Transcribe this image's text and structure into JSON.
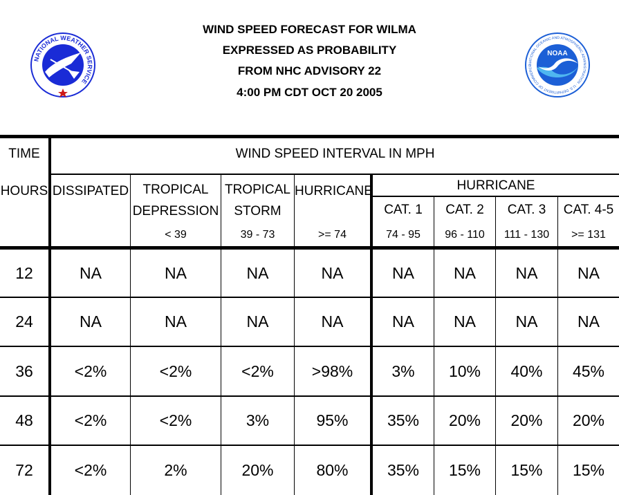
{
  "title_lines": [
    "WIND SPEED FORECAST FOR WILMA",
    "EXPRESSED AS PROBABILITY",
    "FROM NHC ADVISORY   22",
    "4:00 PM CDT OCT 20 2005"
  ],
  "logos": {
    "left": {
      "text": "NATIONAL WEATHER SERVICE"
    },
    "right": {
      "text": "NOAA",
      "ring_text": "NATIONAL OCEANIC AND ATMOSPHERIC ADMINISTRATION · U.S. DEPARTMENT OF COMMERCE"
    }
  },
  "colors": {
    "nws_blue": "#1a2bd6",
    "noaa_blue": "#1c5fd6",
    "noaa_light": "#4fb6f0",
    "star_red": "#cc1a1a"
  },
  "table": {
    "time_header": "TIME",
    "interval_header": "WIND SPEED INTERVAL IN MPH",
    "hours_header": "HOURS",
    "hurricane_group_header": "HURRICANE",
    "columns": [
      {
        "line1": "DISSIPATED",
        "line2": "",
        "range": ""
      },
      {
        "line1": "TROPICAL",
        "line2": "DEPRESSION",
        "range": "< 39"
      },
      {
        "line1": "TROPICAL",
        "line2": "STORM",
        "range": "39 - 73"
      },
      {
        "line1": "HURRICANE",
        "line2": "",
        "range": ">= 74"
      },
      {
        "line1": "CAT. 1",
        "line2": "",
        "range": "74 - 95"
      },
      {
        "line1": "CAT. 2",
        "line2": "",
        "range": "96 - 110"
      },
      {
        "line1": "CAT. 3",
        "line2": "",
        "range": "111 - 130"
      },
      {
        "line1": "CAT. 4-5",
        "line2": "",
        "range": ">= 131"
      }
    ],
    "rows": [
      {
        "hours": "12",
        "values": [
          "NA",
          "NA",
          "NA",
          "NA",
          "NA",
          "NA",
          "NA",
          "NA"
        ]
      },
      {
        "hours": "24",
        "values": [
          "NA",
          "NA",
          "NA",
          "NA",
          "NA",
          "NA",
          "NA",
          "NA"
        ]
      },
      {
        "hours": "36",
        "values": [
          "<2%",
          "<2%",
          "<2%",
          ">98%",
          "3%",
          "10%",
          "40%",
          "45%"
        ]
      },
      {
        "hours": "48",
        "values": [
          "<2%",
          "<2%",
          "3%",
          "95%",
          "35%",
          "20%",
          "20%",
          "20%"
        ]
      },
      {
        "hours": "72",
        "values": [
          "<2%",
          "2%",
          "20%",
          "80%",
          "35%",
          "15%",
          "15%",
          "15%"
        ]
      }
    ]
  }
}
